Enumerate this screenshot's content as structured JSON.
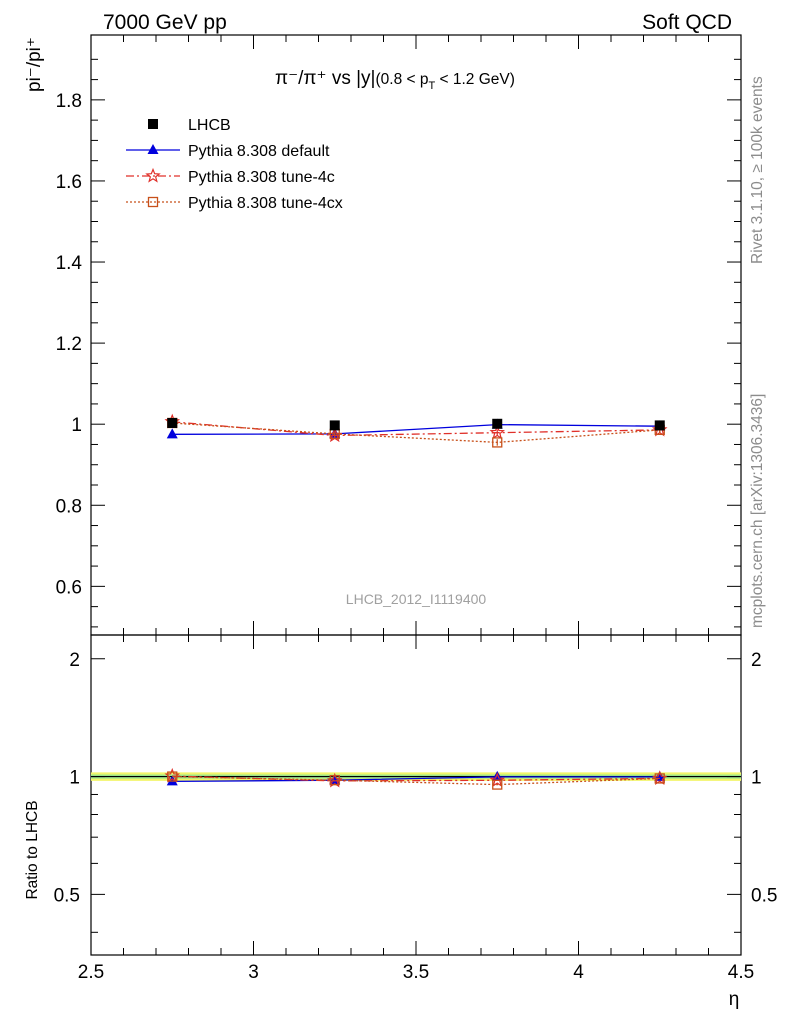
{
  "header": {
    "energy_label": "7000 GeV pp",
    "process_label": "Soft QCD"
  },
  "side_labels": {
    "rivet": "Rivet 3.1.10, ≥ 100k events",
    "source": "mcplots.cern.ch [arXiv:1306.3436]"
  },
  "watermark": "LHCB_2012_I1119400",
  "chart_data": [
    {
      "type": "line",
      "panel": "main",
      "title_parts": {
        "ratio": "π⁻/π⁺ vs |y|",
        "range_open": "(0.8 < p",
        "range_sub": "T",
        "range_close": " < 1.2 GeV)"
      },
      "ylabel": "pi⁻/pi⁺",
      "ylim": [
        0.48,
        1.96
      ],
      "y_ticks": [
        0.6,
        0.8,
        1,
        1.2,
        1.4,
        1.6,
        1.8
      ],
      "y_tick_labels": [
        "0.6",
        "0.8",
        "1",
        "1.2",
        "1.4",
        "1.6",
        "1.8"
      ],
      "xlim": [
        2.5,
        4.5
      ],
      "x": [
        2.75,
        3.25,
        3.75,
        4.25
      ],
      "series": [
        {
          "name": "LHCB",
          "color": "#000000",
          "marker": "square-filled",
          "dash": "none",
          "show_line": false,
          "values": [
            1.003,
            0.997,
            1.001,
            0.997
          ],
          "errors": [
            0.006,
            0.006,
            0.006,
            0.006
          ]
        },
        {
          "name": "Pythia 8.308 default",
          "color": "#0000dd",
          "marker": "triangle-filled",
          "dash": "none",
          "show_line": true,
          "values": [
            0.975,
            0.976,
            0.999,
            0.995
          ],
          "errors": [
            0.004,
            0.004,
            0.005,
            0.005
          ]
        },
        {
          "name": "Pythia 8.308 tune-4c",
          "color": "#e0302a",
          "marker": "star-open",
          "dash": "8,3,2,3",
          "show_line": true,
          "values": [
            1.006,
            0.972,
            0.979,
            0.986
          ],
          "errors": [
            0.006,
            0.006,
            0.008,
            0.008
          ]
        },
        {
          "name": "Pythia 8.308 tune-4cx",
          "color": "#c8501a",
          "marker": "square-open",
          "dash": "2,2",
          "show_line": true,
          "values": [
            1.003,
            0.976,
            0.955,
            0.986
          ],
          "errors": [
            0.006,
            0.006,
            0.008,
            0.008
          ]
        }
      ],
      "legend_position": "top-left"
    },
    {
      "type": "line",
      "panel": "ratio",
      "ylabel": "Ratio to LHCB",
      "xlabel": "η",
      "ylim": [
        0.35,
        2.3
      ],
      "y_ticks": [
        0.5,
        1,
        2
      ],
      "y_tick_labels": [
        "0.5",
        "1",
        "2"
      ],
      "x_ticks": [
        2.5,
        3,
        3.5,
        4,
        4.5
      ],
      "x_tick_labels": [
        "2.5",
        "3",
        "3.5",
        "4",
        "4.5"
      ],
      "xlim": [
        2.5,
        4.5
      ],
      "x": [
        2.75,
        3.25,
        3.75,
        4.25
      ],
      "band": {
        "inner": [
          0.988,
          1.012
        ],
        "outer": [
          0.975,
          1.025
        ]
      },
      "series": [
        {
          "name": "Pythia 8.308 default",
          "values": [
            0.972,
            0.979,
            0.998,
            0.998
          ]
        },
        {
          "name": "Pythia 8.308 tune-4c",
          "values": [
            1.003,
            0.975,
            0.978,
            0.989
          ]
        },
        {
          "name": "Pythia 8.308 tune-4cx",
          "values": [
            1.0,
            0.979,
            0.954,
            0.989
          ]
        }
      ]
    }
  ]
}
